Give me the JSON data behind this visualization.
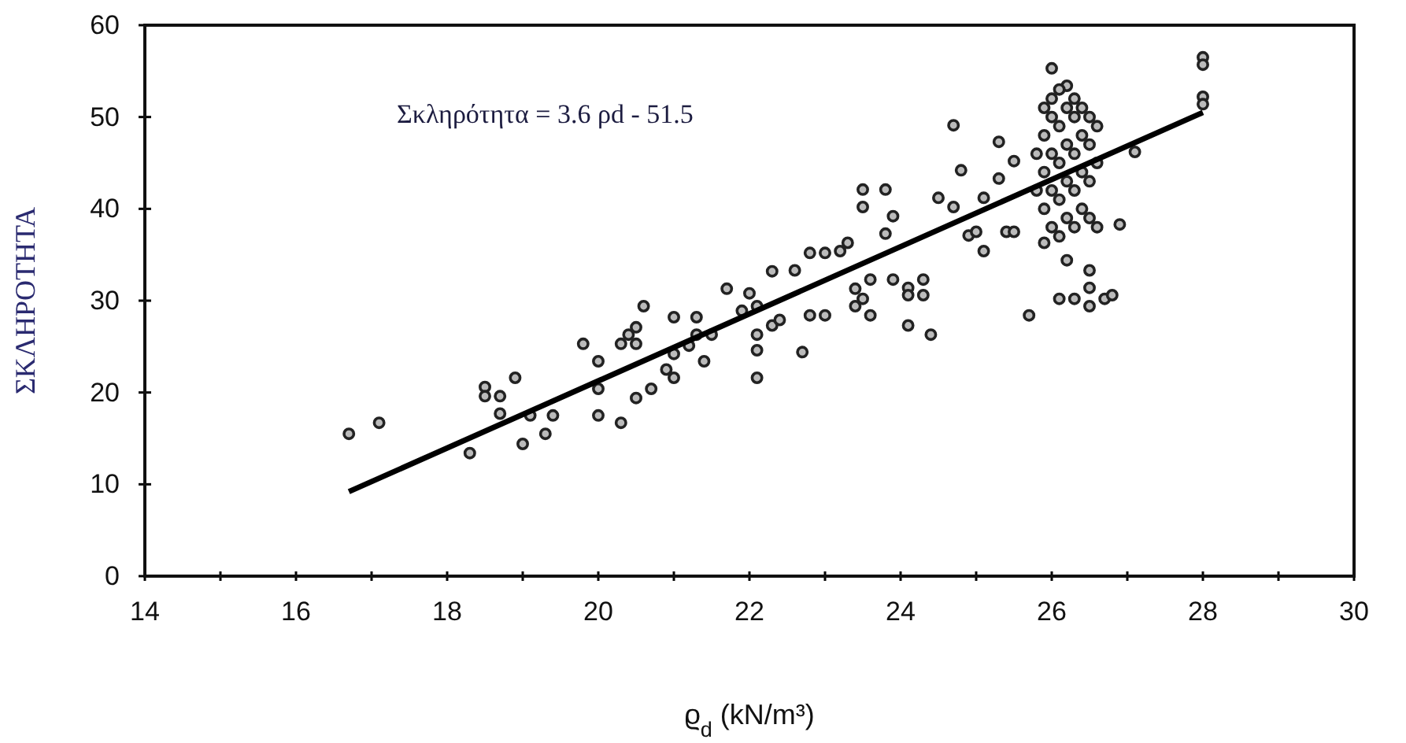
{
  "chart_data": {
    "type": "scatter",
    "xlabel": "ϱ$_{d}$ (kN/m³)",
    "ylabel": "ΣΚΛΗΡΟΤΗΤΑ",
    "annotations": [
      "Σκληρότητα = 3.6 ρd - 51.5"
    ],
    "xlim": [
      14,
      30
    ],
    "ylim": [
      0,
      60
    ],
    "xticks": [
      14,
      {
        "value": 15,
        "label": null
      },
      16,
      {
        "value": 17,
        "label": null
      },
      18,
      {
        "value": 19,
        "label": null
      },
      20,
      {
        "value": 21,
        "label": null
      },
      22,
      {
        "value": 23,
        "label": null
      },
      24,
      {
        "value": 25,
        "label": null
      },
      26,
      {
        "value": 27,
        "label": null
      },
      28,
      {
        "value": 29,
        "label": null
      },
      30
    ],
    "yticks": [
      0,
      10,
      20,
      30,
      40,
      50,
      60
    ],
    "grid": false,
    "series": [
      {
        "color": "#222222",
        "marker": "circle",
        "x": [
          16.7,
          17.1,
          18.3,
          18.5,
          18.5,
          18.7,
          18.7,
          18.9,
          19.0,
          19.1,
          19.3,
          19.4,
          19.8,
          20.0,
          20.0,
          20.0,
          20.3,
          20.3,
          20.4,
          20.5,
          20.5,
          20.5,
          20.7,
          20.6,
          20.9,
          21.0,
          21.0,
          21.0,
          21.2,
          21.3,
          21.3,
          21.5,
          21.4,
          21.7,
          21.9,
          22.0,
          22.1,
          22.1,
          22.1,
          22.1,
          22.3,
          22.3,
          22.4,
          22.6,
          22.7,
          22.8,
          23.0,
          22.8,
          23.0,
          23.2,
          23.3,
          23.5,
          23.8,
          23.5,
          23.9,
          23.8,
          23.4,
          23.5,
          23.4,
          23.6,
          23.6,
          23.9,
          24.1,
          24.3,
          24.1,
          24.3,
          24.1,
          24.4,
          24.5,
          24.7,
          25.1,
          24.9,
          25.0,
          25.1,
          25.4,
          24.7,
          24.8,
          25.3,
          25.3,
          25.5,
          25.7,
          25.9,
          25.5,
          26.0,
          26.2,
          26.2,
          26.5,
          26.1,
          26.3,
          26.5,
          26.7,
          26.8,
          26.5,
          26.9,
          27.1,
          28.0,
          28.0,
          28.0,
          28.0,
          25.9,
          25.9,
          25.9,
          25.9,
          26.0,
          26.0,
          26.0,
          26.0,
          26.0,
          26.1,
          26.1,
          26.1,
          26.1,
          26.1,
          26.2,
          26.2,
          26.2,
          26.2,
          26.3,
          26.3,
          26.3,
          26.3,
          26.3,
          26.4,
          26.4,
          26.4,
          26.4,
          26.5,
          26.5,
          26.5,
          26.5,
          26.6,
          26.6,
          26.6,
          25.8,
          25.8
        ],
        "values": [
          15.5,
          16.7,
          13.4,
          20.6,
          19.6,
          19.6,
          17.7,
          21.6,
          14.4,
          17.5,
          15.5,
          17.5,
          25.3,
          23.4,
          20.4,
          17.5,
          16.7,
          25.3,
          26.3,
          27.1,
          25.3,
          19.4,
          20.4,
          29.4,
          22.5,
          21.6,
          28.2,
          24.2,
          25.1,
          28.2,
          26.3,
          26.3,
          23.4,
          31.3,
          28.9,
          30.8,
          26.3,
          24.6,
          21.6,
          29.4,
          33.2,
          27.3,
          27.9,
          33.3,
          24.4,
          28.4,
          28.4,
          35.2,
          35.2,
          35.4,
          36.3,
          42.1,
          42.1,
          40.2,
          39.2,
          37.3,
          31.3,
          30.2,
          29.4,
          32.3,
          28.4,
          32.3,
          31.4,
          32.3,
          30.6,
          30.6,
          27.3,
          26.3,
          41.2,
          40.2,
          41.2,
          37.1,
          37.5,
          35.4,
          37.5,
          49.1,
          44.2,
          47.3,
          43.3,
          45.2,
          28.4,
          36.3,
          37.5,
          55.3,
          53.4,
          34.4,
          33.3,
          30.2,
          30.2,
          31.4,
          30.2,
          30.6,
          29.4,
          38.3,
          46.2,
          56.5,
          55.7,
          52.2,
          51.4,
          40,
          44,
          48,
          51,
          38,
          42,
          46,
          50,
          52,
          37,
          41,
          45,
          49,
          53,
          39,
          43,
          47,
          51,
          38,
          42,
          46,
          50,
          52,
          40,
          44,
          48,
          51,
          39,
          43,
          47,
          50,
          38,
          45,
          49,
          42,
          46
        ]
      },
      {
        "type": "line",
        "color": "#000000",
        "line_style": "solid",
        "x": [
          16.7,
          28.0
        ],
        "values": [
          9.2,
          50.5
        ]
      }
    ]
  }
}
